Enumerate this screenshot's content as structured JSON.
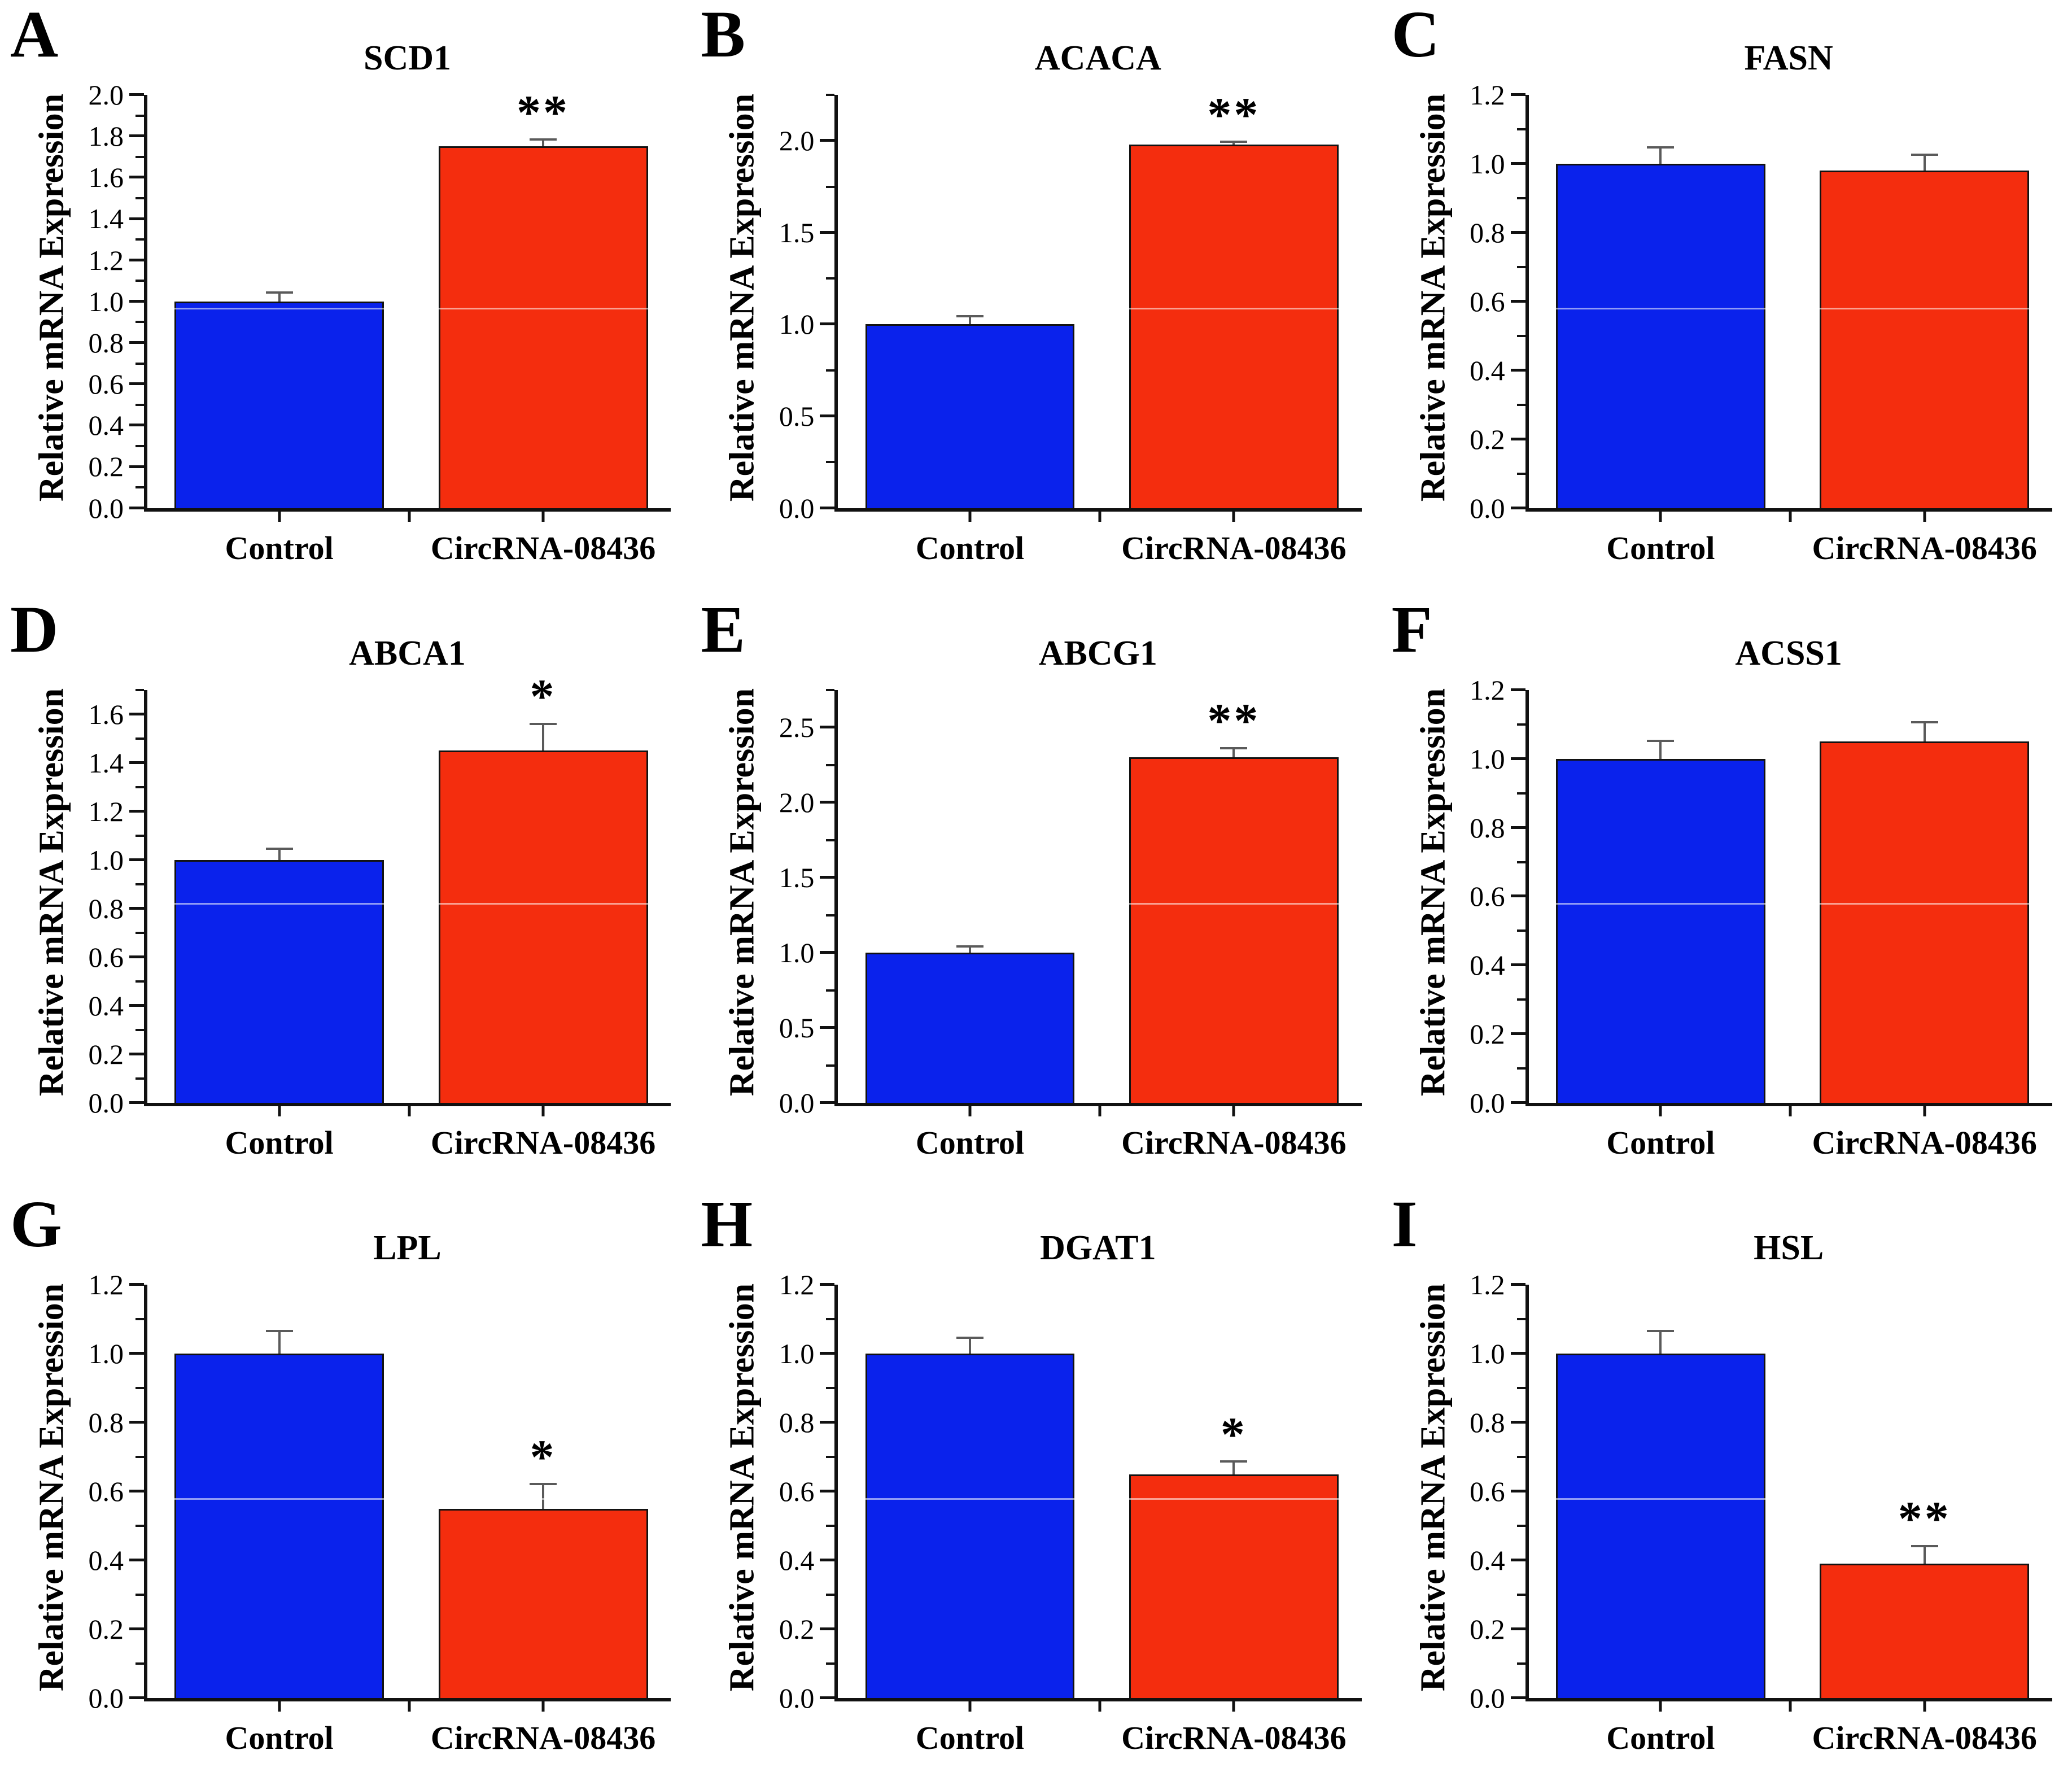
{
  "figure": {
    "ylabel": "Relative mRNA Expression",
    "categories": [
      "Control",
      "CircRNA-08436"
    ],
    "colors": {
      "control_bar": "#0A22EC",
      "circrna_bar": "#F42D0E",
      "bar_outline": "#121212",
      "axis": "#111111",
      "error_bar": "#5a5a5a",
      "background": "#ffffff",
      "text": "#000000"
    }
  },
  "chart_data": {
    "type": "bar",
    "ylabel": "Relative mRNA Expression",
    "categories": [
      "Control",
      "CircRNA-08436"
    ],
    "legend_position": "none",
    "grid": "off",
    "series_colors": [
      "#0A22EC",
      "#F42D0E"
    ],
    "panels": [
      {
        "letter": "A",
        "title": "SCD1",
        "values": [
          1.0,
          1.75
        ],
        "errors": [
          0.05,
          0.04
        ],
        "significance": [
          "",
          "**"
        ],
        "ytick_step": 0.2,
        "minor_step": 0.1,
        "ytick_max": 2.0,
        "axis_max": 2.0,
        "ylim": [
          0.0,
          2.0
        ]
      },
      {
        "letter": "B",
        "title": "ACACA",
        "values": [
          1.0,
          1.98
        ],
        "errors": [
          0.05,
          0.02
        ],
        "significance": [
          "",
          "**"
        ],
        "ytick_step": 0.5,
        "minor_step": 0.25,
        "ytick_max": 2.0,
        "axis_max": 2.25,
        "ylim": [
          0.0,
          2.25
        ]
      },
      {
        "letter": "C",
        "title": "FASN",
        "values": [
          1.0,
          0.98
        ],
        "errors": [
          0.05,
          0.05
        ],
        "significance": [
          "",
          ""
        ],
        "ytick_step": 0.2,
        "minor_step": 0.1,
        "ytick_max": 1.2,
        "axis_max": 1.2,
        "ylim": [
          0.0,
          1.2
        ]
      },
      {
        "letter": "D",
        "title": "ABCA1",
        "values": [
          1.0,
          1.45
        ],
        "errors": [
          0.05,
          0.115
        ],
        "significance": [
          "",
          "*"
        ],
        "ytick_step": 0.2,
        "minor_step": 0.1,
        "ytick_max": 1.6,
        "axis_max": 1.7,
        "ylim": [
          0.0,
          1.7
        ]
      },
      {
        "letter": "E",
        "title": "ABCG1",
        "values": [
          1.0,
          2.3
        ],
        "errors": [
          0.05,
          0.07
        ],
        "significance": [
          "",
          "**"
        ],
        "ytick_step": 0.5,
        "minor_step": 0.25,
        "ytick_max": 2.5,
        "axis_max": 2.75,
        "ylim": [
          0.0,
          2.75
        ]
      },
      {
        "letter": "F",
        "title": "ACSS1",
        "values": [
          1.0,
          1.05
        ],
        "errors": [
          0.055,
          0.06
        ],
        "significance": [
          "",
          ""
        ],
        "ytick_step": 0.2,
        "minor_step": 0.1,
        "ytick_max": 1.2,
        "axis_max": 1.2,
        "ylim": [
          0.0,
          1.2
        ]
      },
      {
        "letter": "G",
        "title": "LPL",
        "values": [
          1.0,
          0.55
        ],
        "errors": [
          0.07,
          0.075
        ],
        "significance": [
          "",
          "*"
        ],
        "ytick_step": 0.2,
        "minor_step": 0.1,
        "ytick_max": 1.2,
        "axis_max": 1.2,
        "ylim": [
          0.0,
          1.2
        ]
      },
      {
        "letter": "H",
        "title": "DGAT1",
        "values": [
          1.0,
          0.65
        ],
        "errors": [
          0.05,
          0.04
        ],
        "significance": [
          "",
          "*"
        ],
        "ytick_step": 0.2,
        "minor_step": 0.1,
        "ytick_max": 1.2,
        "axis_max": 1.2,
        "ylim": [
          0.0,
          1.2
        ]
      },
      {
        "letter": "I",
        "title": "HSL",
        "values": [
          1.0,
          0.39
        ],
        "errors": [
          0.07,
          0.055
        ],
        "significance": [
          "",
          "**"
        ],
        "ytick_step": 0.2,
        "minor_step": 0.1,
        "ytick_max": 1.2,
        "axis_max": 1.2,
        "ylim": [
          0.0,
          1.2
        ]
      }
    ]
  }
}
